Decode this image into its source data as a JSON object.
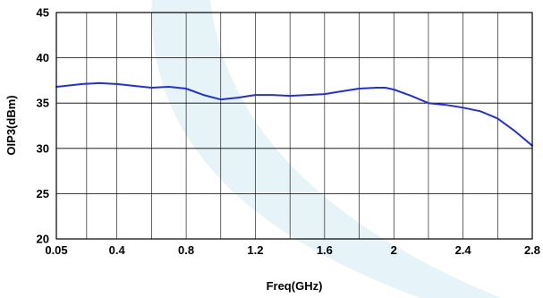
{
  "chart_data": {
    "type": "line",
    "title": "",
    "xlabel": "Freq(GHz)",
    "ylabel": "OIP3(dBm)",
    "xlim": [
      0.05,
      2.8
    ],
    "ylim": [
      20,
      45
    ],
    "x_ticks": [
      "0.05",
      "0.4",
      "0.8",
      "1.2",
      "1.6",
      "2",
      "2.4",
      "2.8"
    ],
    "y_ticks": [
      "20",
      "25",
      "30",
      "35",
      "40",
      "45"
    ],
    "grid": true,
    "series": [
      {
        "name": "",
        "color": "#2233cc",
        "x": [
          0.05,
          0.1,
          0.2,
          0.3,
          0.4,
          0.5,
          0.6,
          0.7,
          0.8,
          0.9,
          1.0,
          1.05,
          1.1,
          1.2,
          1.3,
          1.4,
          1.5,
          1.6,
          1.7,
          1.8,
          1.9,
          1.95,
          2.0,
          2.1,
          2.2,
          2.3,
          2.4,
          2.5,
          2.6,
          2.7,
          2.8
        ],
        "y": [
          36.8,
          36.9,
          37.1,
          37.2,
          37.1,
          36.9,
          36.7,
          36.8,
          36.6,
          35.9,
          35.4,
          35.5,
          35.6,
          35.9,
          35.9,
          35.8,
          35.9,
          36.0,
          36.3,
          36.6,
          36.7,
          36.7,
          36.5,
          35.8,
          35.0,
          34.8,
          34.5,
          34.1,
          33.3,
          31.9,
          30.3
        ]
      }
    ]
  },
  "colors": {
    "background_watermark": "#e6f3f8",
    "grid": "#000000",
    "line": "#2233cc"
  }
}
